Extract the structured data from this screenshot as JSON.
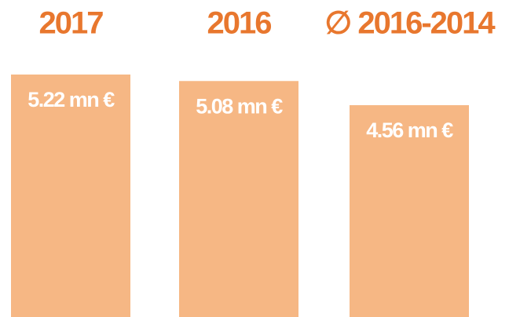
{
  "chart_data": {
    "type": "bar",
    "categories": [
      "2017",
      "2016",
      "∅ 2016-2014"
    ],
    "values": [
      5.22,
      5.08,
      4.56
    ],
    "value_labels": [
      "5.22 mn €",
      "5.08 mn €",
      "4.56 mn €"
    ],
    "color": "#f6b784",
    "label_color": "#e8772e"
  }
}
